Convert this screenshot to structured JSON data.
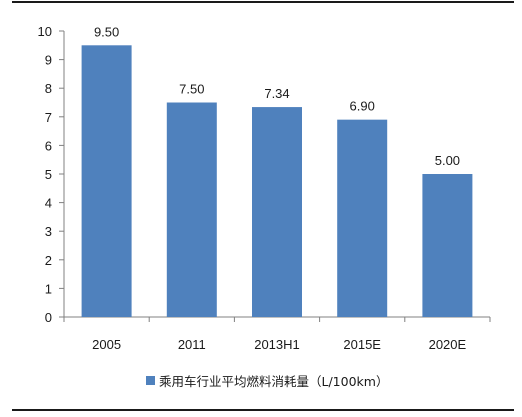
{
  "chart_data": {
    "type": "bar",
    "categories": [
      "2005",
      "2011",
      "2013H1",
      "2015E",
      "2020E"
    ],
    "series": [
      {
        "name": "乘用车行业平均燃料消耗量（L/100km）",
        "values": [
          9.5,
          7.5,
          7.34,
          6.9,
          5.0
        ],
        "data_labels": [
          "9.50",
          "7.50",
          "7.34",
          "6.90",
          "5.00"
        ],
        "color": "#4f81bd"
      }
    ],
    "ylim": [
      0,
      10
    ],
    "yticks": [
      0,
      1,
      2,
      3,
      4,
      5,
      6,
      7,
      8,
      9,
      10
    ],
    "grid": false,
    "legend_position": "bottom"
  }
}
